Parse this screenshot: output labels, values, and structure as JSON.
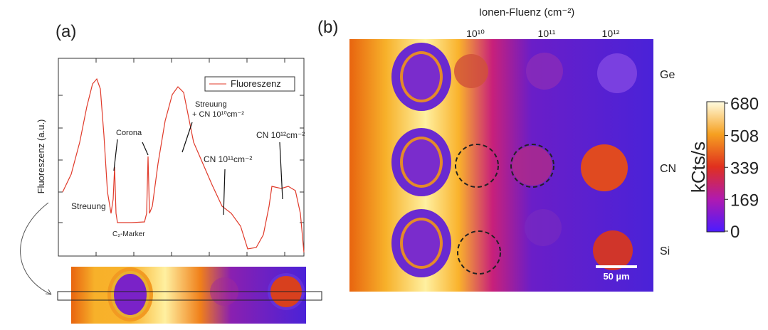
{
  "panel_a": {
    "label": "(a)",
    "y_axis_label": "Fluoreszenz (a.u.)",
    "legend": "Fluoreszenz",
    "annotations": {
      "scattering_left": "Streuung",
      "corona": "Corona",
      "marker": "C₂-Marker",
      "scattering_cn_line1": "Streuung",
      "scattering_cn_line2": "+ CN 10¹⁰cm⁻²",
      "cn11": "CN 10¹¹cm⁻²",
      "cn12": "CN 10¹²cm⁻²"
    }
  },
  "panel_b": {
    "label": "(b)",
    "top_title": "Ionen-Fluenz (cm⁻²)",
    "columns": [
      "10¹⁰",
      "10¹¹",
      "10¹²"
    ],
    "rows": [
      "Ge",
      "CN",
      "Si"
    ],
    "scale_bar": "50 µm",
    "colorbar": {
      "label": "kCts/s",
      "lim": [
        0,
        680
      ],
      "ticks": [
        0,
        169,
        339,
        508,
        680
      ]
    }
  }
}
